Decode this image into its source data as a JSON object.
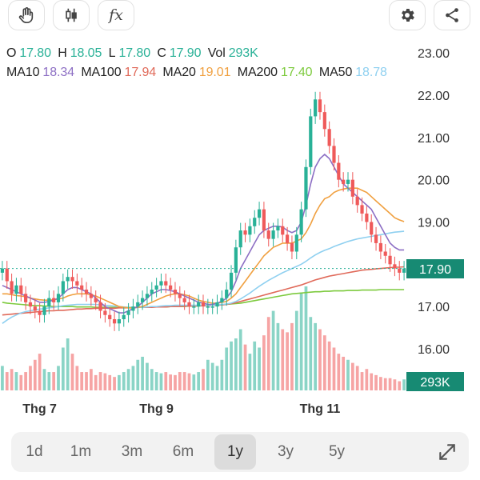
{
  "toolbar": {
    "draw_icon": "hand-icon",
    "candle_icon": "candlestick-icon",
    "indicator_label": "fx",
    "settings_icon": "gear-icon",
    "share_icon": "share-icon"
  },
  "ohlc": {
    "o_label": "O",
    "o": "17.80",
    "h_label": "H",
    "h": "18.05",
    "l_label": "L",
    "l": "17.80",
    "c_label": "C",
    "c": "17.90",
    "vol_label": "Vol",
    "vol": "293K"
  },
  "ma": [
    {
      "label": "MA10",
      "value": "18.34",
      "color": "#8d6fc4"
    },
    {
      "label": "MA100",
      "value": "17.94",
      "color": "#e06a5a"
    },
    {
      "label": "MA20",
      "value": "19.01",
      "color": "#f0a040"
    },
    {
      "label": "MA200",
      "value": "17.40",
      "color": "#7dca3e"
    },
    {
      "label": "MA50",
      "value": "18.78",
      "color": "#8fd0f0"
    }
  ],
  "chart_data": {
    "type": "candlestick",
    "y_ticks": [
      "23.00",
      "22.00",
      "21.00",
      "20.00",
      "19.00",
      "17.00",
      "16.00"
    ],
    "ylim": [
      15.1,
      23.2
    ],
    "x_ticks": [
      "Thg 7",
      "Thg 9",
      "Thg 11"
    ],
    "last_price": "17.90",
    "last_volume": "293K",
    "up_color": "#29b197",
    "down_color": "#ef5a5a",
    "closes": [
      17.9,
      17.6,
      17.3,
      17.5,
      17.3,
      17.1,
      17.0,
      16.9,
      16.8,
      17.0,
      17.2,
      17.1,
      17.3,
      17.6,
      17.7,
      17.6,
      17.5,
      17.4,
      17.3,
      17.2,
      17.1,
      16.9,
      16.8,
      16.7,
      16.6,
      16.7,
      16.8,
      16.9,
      17.0,
      17.1,
      17.2,
      17.3,
      17.4,
      17.5,
      17.6,
      17.5,
      17.4,
      17.3,
      17.2,
      17.1,
      17.0,
      17.0,
      17.1,
      17.0,
      17.0,
      17.0,
      17.1,
      17.2,
      17.4,
      17.8,
      18.4,
      18.8,
      18.7,
      18.9,
      19.1,
      19.3,
      18.8,
      18.6,
      18.8,
      18.9,
      18.7,
      18.5,
      18.3,
      18.7,
      19.3,
      20.3,
      21.5,
      21.9,
      21.6,
      21.2,
      20.8,
      20.4,
      20.0,
      19.9,
      20.0,
      19.6,
      19.4,
      19.2,
      19.0,
      18.7,
      18.5,
      18.3,
      18.2,
      18.0,
      17.9,
      17.8,
      17.9
    ],
    "volumes": [
      40,
      30,
      35,
      30,
      25,
      30,
      40,
      50,
      60,
      35,
      30,
      30,
      40,
      70,
      85,
      60,
      40,
      30,
      30,
      35,
      25,
      30,
      28,
      25,
      22,
      25,
      30,
      35,
      40,
      50,
      55,
      45,
      35,
      30,
      28,
      30,
      26,
      25,
      30,
      30,
      28,
      26,
      30,
      35,
      50,
      45,
      40,
      50,
      70,
      80,
      85,
      100,
      75,
      60,
      80,
      70,
      90,
      120,
      130,
      110,
      100,
      95,
      110,
      130,
      160,
      170,
      120,
      110,
      100,
      90,
      80,
      70,
      60,
      55,
      50,
      45,
      40,
      30,
      35,
      28,
      25,
      22,
      20,
      20,
      18,
      15,
      18
    ],
    "ma10": [
      17.5,
      17.45,
      17.4,
      17.35,
      17.3,
      17.25,
      17.2,
      17.15,
      17.1,
      17.1,
      17.12,
      17.15,
      17.2,
      17.3,
      17.4,
      17.45,
      17.45,
      17.4,
      17.35,
      17.3,
      17.2,
      17.1,
      17.0,
      16.95,
      16.9,
      16.85,
      16.85,
      16.9,
      16.95,
      17.0,
      17.1,
      17.2,
      17.3,
      17.35,
      17.4,
      17.4,
      17.38,
      17.35,
      17.3,
      17.25,
      17.2,
      17.15,
      17.1,
      17.08,
      17.05,
      17.05,
      17.08,
      17.12,
      17.2,
      17.35,
      17.6,
      17.9,
      18.1,
      18.3,
      18.5,
      18.7,
      18.8,
      18.85,
      18.9,
      18.9,
      18.88,
      18.8,
      18.75,
      18.8,
      19.0,
      19.4,
      19.9,
      20.3,
      20.5,
      20.6,
      20.5,
      20.3,
      20.1,
      19.9,
      19.8,
      19.7,
      19.6,
      19.5,
      19.4,
      19.3,
      19.1,
      18.9,
      18.7,
      18.5,
      18.4,
      18.34,
      18.34
    ],
    "ma20": [
      17.3,
      17.3,
      17.28,
      17.26,
      17.25,
      17.23,
      17.2,
      17.18,
      17.16,
      17.15,
      17.15,
      17.16,
      17.18,
      17.2,
      17.25,
      17.28,
      17.3,
      17.3,
      17.3,
      17.28,
      17.25,
      17.2,
      17.15,
      17.1,
      17.05,
      17.0,
      16.98,
      16.97,
      16.97,
      16.98,
      17.0,
      17.05,
      17.1,
      17.15,
      17.2,
      17.25,
      17.28,
      17.3,
      17.3,
      17.28,
      17.25,
      17.2,
      17.15,
      17.12,
      17.1,
      17.08,
      17.08,
      17.1,
      17.12,
      17.2,
      17.3,
      17.45,
      17.6,
      17.75,
      17.9,
      18.05,
      18.2,
      18.3,
      18.4,
      18.45,
      18.5,
      18.5,
      18.5,
      18.55,
      18.6,
      18.75,
      18.95,
      19.2,
      19.4,
      19.55,
      19.6,
      19.7,
      19.75,
      19.78,
      19.8,
      19.8,
      19.8,
      19.75,
      19.7,
      19.6,
      19.5,
      19.4,
      19.3,
      19.2,
      19.1,
      19.05,
      19.01
    ],
    "ma50": [
      16.6,
      16.68,
      16.75,
      16.8,
      16.85,
      16.88,
      16.9,
      16.92,
      16.94,
      16.95,
      16.97,
      16.98,
      17.0,
      17.02,
      17.03,
      17.04,
      17.05,
      17.05,
      17.05,
      17.05,
      17.05,
      17.04,
      17.03,
      17.02,
      17.01,
      17.0,
      16.99,
      16.98,
      16.98,
      16.98,
      16.98,
      16.99,
      17.0,
      17.0,
      17.01,
      17.02,
      17.02,
      17.03,
      17.03,
      17.03,
      17.03,
      17.03,
      17.03,
      17.03,
      17.03,
      17.03,
      17.04,
      17.05,
      17.06,
      17.08,
      17.12,
      17.18,
      17.25,
      17.32,
      17.4,
      17.48,
      17.55,
      17.62,
      17.68,
      17.74,
      17.8,
      17.85,
      17.9,
      17.95,
      18.0,
      18.07,
      18.15,
      18.22,
      18.28,
      18.33,
      18.37,
      18.42,
      18.46,
      18.5,
      18.54,
      18.57,
      18.6,
      18.62,
      18.64,
      18.66,
      18.68,
      18.7,
      18.72,
      18.74,
      18.76,
      18.77,
      18.78
    ],
    "ma100": [
      16.8,
      16.81,
      16.82,
      16.83,
      16.84,
      16.85,
      16.86,
      16.87,
      16.88,
      16.89,
      16.9,
      16.9,
      16.91,
      16.91,
      16.92,
      16.93,
      16.94,
      16.94,
      16.95,
      16.95,
      16.96,
      16.96,
      16.96,
      16.96,
      16.96,
      16.97,
      16.97,
      16.97,
      16.97,
      16.98,
      16.98,
      16.98,
      16.98,
      16.99,
      16.99,
      16.99,
      17.0,
      17.0,
      17.0,
      17.01,
      17.01,
      17.01,
      17.02,
      17.02,
      17.02,
      17.03,
      17.03,
      17.04,
      17.05,
      17.07,
      17.09,
      17.12,
      17.15,
      17.18,
      17.21,
      17.24,
      17.27,
      17.3,
      17.33,
      17.36,
      17.39,
      17.42,
      17.45,
      17.48,
      17.51,
      17.55,
      17.59,
      17.63,
      17.66,
      17.69,
      17.72,
      17.74,
      17.76,
      17.78,
      17.8,
      17.82,
      17.84,
      17.86,
      17.87,
      17.88,
      17.89,
      17.9,
      17.91,
      17.92,
      17.93,
      17.93,
      17.94
    ],
    "ma200": [
      17.1,
      17.08,
      17.07,
      17.06,
      17.05,
      17.04,
      17.03,
      17.02,
      17.02,
      17.01,
      17.01,
      17.0,
      17.0,
      17.0,
      17.0,
      17.0,
      16.99,
      16.99,
      16.99,
      16.99,
      16.98,
      16.98,
      16.98,
      16.98,
      16.98,
      16.98,
      16.98,
      16.98,
      16.98,
      16.98,
      16.98,
      16.98,
      16.99,
      16.99,
      16.99,
      16.99,
      17.0,
      17.0,
      17.0,
      17.0,
      17.01,
      17.01,
      17.01,
      17.02,
      17.02,
      17.03,
      17.03,
      17.04,
      17.05,
      17.06,
      17.07,
      17.08,
      17.1,
      17.12,
      17.14,
      17.16,
      17.18,
      17.2,
      17.22,
      17.24,
      17.26,
      17.28,
      17.3,
      17.31,
      17.32,
      17.33,
      17.34,
      17.35,
      17.35,
      17.36,
      17.36,
      17.37,
      17.37,
      17.37,
      17.38,
      17.38,
      17.38,
      17.39,
      17.39,
      17.39,
      17.39,
      17.4,
      17.4,
      17.4,
      17.4,
      17.4,
      17.4
    ]
  },
  "ranges": [
    {
      "label": "1d",
      "active": false
    },
    {
      "label": "1m",
      "active": false
    },
    {
      "label": "3m",
      "active": false
    },
    {
      "label": "6m",
      "active": false
    },
    {
      "label": "1y",
      "active": true
    },
    {
      "label": "3y",
      "active": false
    },
    {
      "label": "5y",
      "active": false
    }
  ],
  "expand_icon": "expand-icon"
}
